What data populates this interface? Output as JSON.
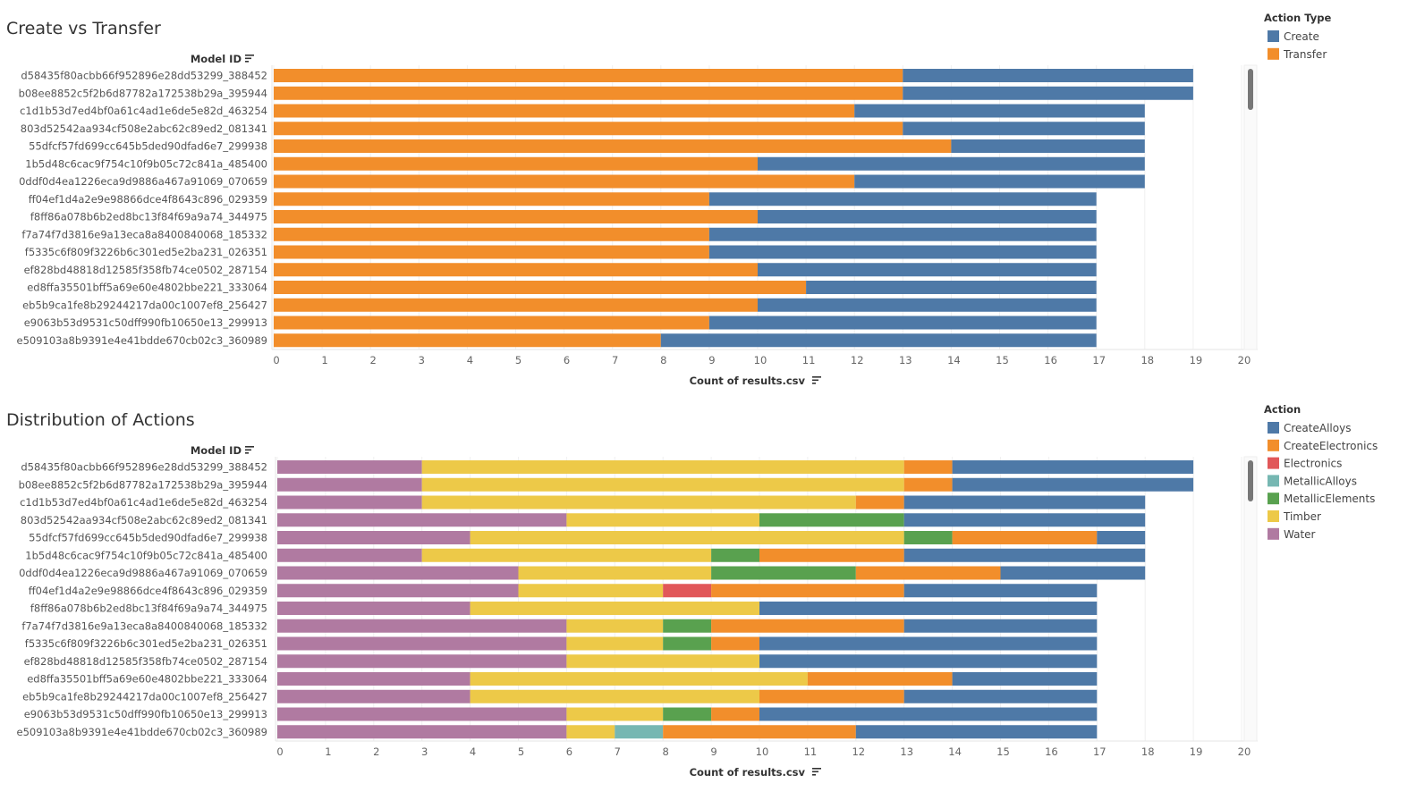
{
  "chart_data": [
    {
      "type": "bar",
      "orientation": "horizontal",
      "stacked": true,
      "title": "Create vs Transfer",
      "ylabel": "Model ID",
      "xlabel": "Count of results.csv",
      "xlim": [
        0,
        20
      ],
      "xticks": [
        "0",
        "1",
        "2",
        "3",
        "4",
        "5",
        "6",
        "7",
        "8",
        "9",
        "10",
        "11",
        "12",
        "13",
        "14",
        "15",
        "16",
        "17",
        "18",
        "19",
        "20"
      ],
      "grid": true,
      "legend_title": "Action Type",
      "legend_placement": "right",
      "categories": [
        "d58435f80acbb66f952896e28dd53299_388452",
        "b08ee8852c5f2b6d87782a172538b29a_395944",
        "c1d1b53d7ed4bf0a61c4ad1e6de5e82d_463254",
        "803d52542aa934cf508e2abc62c89ed2_081341",
        "55dfcf57fd699cc645b5ded90dfad6e7_299938",
        "1b5d48c6cac9f754c10f9b05c72c841a_485400",
        "0ddf0d4ea1226eca9d9886a467a91069_070659",
        "ff04ef1d4a2e9e98866dce4f8643c896_029359",
        "f8ff86a078b6b2ed8bc13f84f69a9a74_344975",
        "f7a74f7d3816e9a13eca8a8400840068_185332",
        "f5335c6f809f3226b6c301ed5e2ba231_026351",
        "ef828bd48818d12585f358fb74ce0502_287154",
        "ed8ffa35501bff5a69e60e4802bbe221_333064",
        "eb5b9ca1fe8b29244217da00c1007ef8_256427",
        "e9063b53d9531c50dff990fb10650e13_299913",
        "e509103a8b9391e4e41bdde670cb02c3_360989"
      ],
      "stack_order": [
        "Transfer",
        "Create"
      ],
      "series": [
        {
          "name": "Create",
          "color": "#4e79a7",
          "values": [
            6,
            6,
            6,
            5,
            4,
            8,
            6,
            8,
            7,
            8,
            8,
            7,
            6,
            7,
            8,
            9
          ]
        },
        {
          "name": "Transfer",
          "color": "#f28e2b",
          "values": [
            13,
            13,
            12,
            13,
            14,
            10,
            12,
            9,
            10,
            9,
            9,
            10,
            11,
            10,
            9,
            8
          ]
        }
      ]
    },
    {
      "type": "bar",
      "orientation": "horizontal",
      "stacked": true,
      "title": "Distribution of Actions",
      "ylabel": "Model ID",
      "xlabel": "Count of results.csv",
      "xlim": [
        0,
        20
      ],
      "xticks": [
        "0",
        "1",
        "2",
        "3",
        "4",
        "5",
        "6",
        "7",
        "8",
        "9",
        "10",
        "11",
        "12",
        "13",
        "14",
        "15",
        "16",
        "17",
        "18",
        "19",
        "20"
      ],
      "grid": true,
      "legend_title": "Action",
      "legend_placement": "right",
      "categories": [
        "d58435f80acbb66f952896e28dd53299_388452",
        "b08ee8852c5f2b6d87782a172538b29a_395944",
        "c1d1b53d7ed4bf0a61c4ad1e6de5e82d_463254",
        "803d52542aa934cf508e2abc62c89ed2_081341",
        "55dfcf57fd699cc645b5ded90dfad6e7_299938",
        "1b5d48c6cac9f754c10f9b05c72c841a_485400",
        "0ddf0d4ea1226eca9d9886a467a91069_070659",
        "ff04ef1d4a2e9e98866dce4f8643c896_029359",
        "f8ff86a078b6b2ed8bc13f84f69a9a74_344975",
        "f7a74f7d3816e9a13eca8a8400840068_185332",
        "f5335c6f809f3226b6c301ed5e2ba231_026351",
        "ef828bd48818d12585f358fb74ce0502_287154",
        "ed8ffa35501bff5a69e60e4802bbe221_333064",
        "eb5b9ca1fe8b29244217da00c1007ef8_256427",
        "e9063b53d9531c50dff990fb10650e13_299913",
        "e509103a8b9391e4e41bdde670cb02c3_360989"
      ],
      "stack_order": [
        "Water",
        "Timber",
        "MetallicElements",
        "MetallicAlloys",
        "Electronics",
        "CreateElectronics",
        "CreateAlloys"
      ],
      "series": [
        {
          "name": "CreateAlloys",
          "color": "#4e79a7",
          "values": [
            5,
            5,
            5,
            5,
            1,
            5,
            3,
            4,
            7,
            4,
            7,
            7,
            3,
            4,
            7,
            5
          ]
        },
        {
          "name": "CreateElectronics",
          "color": "#f28e2b",
          "values": [
            1,
            1,
            1,
            0,
            3,
            3,
            3,
            4,
            0,
            4,
            1,
            0,
            3,
            3,
            1,
            4
          ]
        },
        {
          "name": "Electronics",
          "color": "#e15759",
          "values": [
            0,
            0,
            0,
            0,
            0,
            0,
            0,
            1,
            0,
            0,
            0,
            0,
            0,
            0,
            0,
            0
          ]
        },
        {
          "name": "MetallicAlloys",
          "color": "#76b7b2",
          "values": [
            0,
            0,
            0,
            0,
            0,
            0,
            0,
            0,
            0,
            0,
            0,
            0,
            0,
            0,
            0,
            1
          ]
        },
        {
          "name": "MetallicElements",
          "color": "#59a14f",
          "values": [
            0,
            0,
            0,
            3,
            1,
            1,
            3,
            0,
            0,
            1,
            1,
            0,
            0,
            0,
            1,
            0
          ]
        },
        {
          "name": "Timber",
          "color": "#edc948",
          "values": [
            10,
            10,
            9,
            4,
            9,
            6,
            4,
            3,
            6,
            2,
            2,
            4,
            7,
            6,
            2,
            1
          ]
        },
        {
          "name": "Water",
          "color": "#b07aa1",
          "values": [
            3,
            3,
            3,
            6,
            4,
            3,
            5,
            5,
            4,
            6,
            6,
            6,
            4,
            4,
            6,
            6
          ]
        }
      ]
    }
  ]
}
